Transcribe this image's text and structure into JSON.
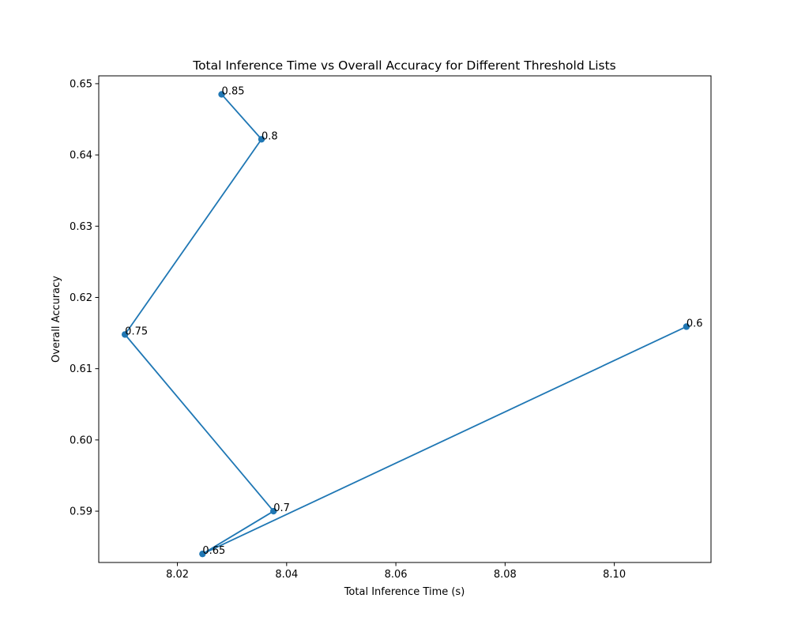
{
  "chart_data": {
    "type": "line",
    "title": "Total Inference Time vs Overall Accuracy for Different Threshold Lists",
    "xlabel": "Total Inference Time (s)",
    "ylabel": "Overall Accuracy",
    "xlim": [
      8.0056,
      8.1177
    ],
    "ylim": [
      0.5828,
      0.6511
    ],
    "x_ticks": [
      "8.02",
      "8.04",
      "8.06",
      "8.08",
      "8.10"
    ],
    "x_tick_values": [
      8.02,
      8.04,
      8.06,
      8.08,
      8.1
    ],
    "y_ticks": [
      "0.59",
      "0.60",
      "0.61",
      "0.62",
      "0.63",
      "0.64",
      "0.65"
    ],
    "y_tick_values": [
      0.59,
      0.6,
      0.61,
      0.62,
      0.63,
      0.64,
      0.65
    ],
    "grid": false,
    "series": [
      {
        "color": "#1f77b4",
        "points": [
          {
            "label": "0.6",
            "x": 8.1132,
            "y": 0.6159
          },
          {
            "label": "0.65",
            "x": 8.0246,
            "y": 0.584
          },
          {
            "label": "0.7",
            "x": 8.0376,
            "y": 0.59
          },
          {
            "label": "0.75",
            "x": 8.0104,
            "y": 0.6148
          },
          {
            "label": "0.8",
            "x": 8.0354,
            "y": 0.6422
          },
          {
            "label": "0.85",
            "x": 8.0281,
            "y": 0.6485
          }
        ]
      }
    ]
  }
}
